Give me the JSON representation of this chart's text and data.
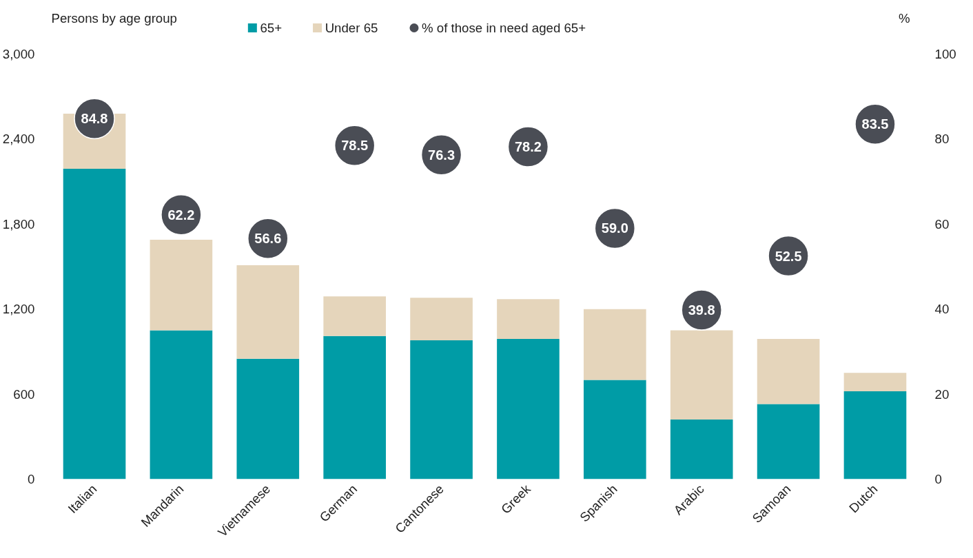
{
  "chart_data": {
    "type": "bar",
    "stacked": true,
    "ylabel": "Persons by age group",
    "y2label": "%",
    "categories": [
      "Italian",
      "Mandarin",
      "Vietnamese",
      "German",
      "Cantonese",
      "Greek",
      "Spanish",
      "Arabic",
      "Samoan",
      "Dutch"
    ],
    "series": [
      {
        "name": "65+",
        "color": "#009ca6",
        "values": [
          2190,
          1050,
          850,
          1010,
          980,
          990,
          700,
          420,
          530,
          620
        ]
      },
      {
        "name": "Under 65",
        "color": "#e5d5bb",
        "values": [
          390,
          640,
          660,
          280,
          300,
          280,
          500,
          630,
          460,
          130
        ]
      },
      {
        "name": "% of those in need aged 65+",
        "type": "scatter",
        "axis": "y2",
        "color": "#4a4d55",
        "values": [
          84.8,
          62.2,
          56.6,
          78.5,
          76.3,
          78.2,
          59.0,
          39.8,
          52.5,
          83.5
        ],
        "value_labels": [
          "84.8",
          "62.2",
          "56.6",
          "78.5",
          "76.3",
          "78.2",
          "59.0",
          "39.8",
          "52.5",
          "83.5"
        ]
      }
    ],
    "ylim": [
      0,
      3000
    ],
    "yticks": [
      {
        "value": 0,
        "label": "0"
      },
      {
        "value": 600,
        "label": "600"
      },
      {
        "value": 1200,
        "label": "1,200"
      },
      {
        "value": 1800,
        "label": "1,800"
      },
      {
        "value": 2400,
        "label": "2,400"
      },
      {
        "value": 3000,
        "label": "3,000"
      }
    ],
    "y2lim": [
      0,
      100
    ],
    "y2ticks": [
      0,
      20,
      40,
      60,
      80,
      100
    ],
    "legend": "top",
    "grid": false,
    "marker": "circle"
  }
}
